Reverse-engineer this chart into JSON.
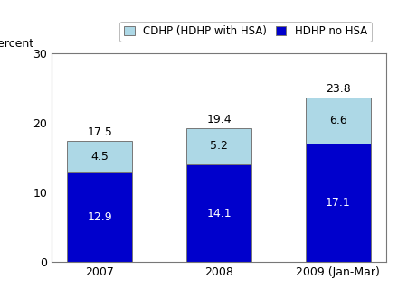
{
  "categories": [
    "2007",
    "2008",
    "2009 (Jan-Mar)"
  ],
  "hdhp_no_hsa": [
    12.9,
    14.1,
    17.1
  ],
  "cdhp_hsa": [
    4.5,
    5.2,
    6.6
  ],
  "totals": [
    17.5,
    19.4,
    23.8
  ],
  "color_hdhp": "#0000CC",
  "color_cdhp": "#ADD8E6",
  "ylabel": "Percent",
  "ylim": [
    0,
    30
  ],
  "yticks": [
    0,
    10,
    20,
    30
  ],
  "legend_cdhp": "CDHP (HDHP with HSA)",
  "legend_hdhp": "HDHP no HSA",
  "bar_width": 0.55,
  "label_fontsize": 9,
  "annotation_fontsize": 9,
  "inside_label_fontsize": 9,
  "inside_label_color": "white",
  "total_label_color": "black"
}
